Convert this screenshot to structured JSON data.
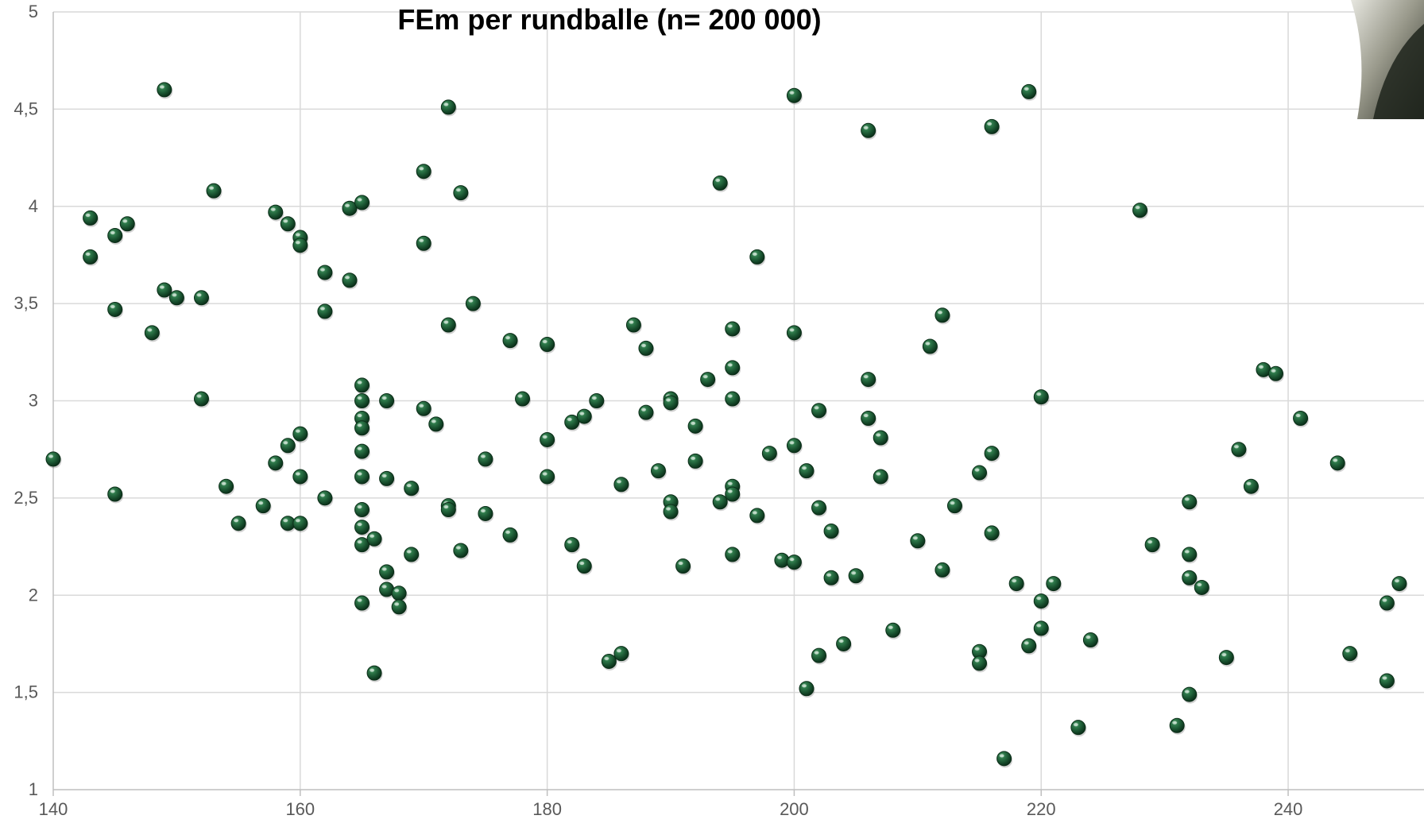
{
  "chart_data": {
    "type": "scatter",
    "title": "FEm per rundballe (n= 200 000)",
    "xlabel": "",
    "ylabel": "",
    "xlim": [
      140,
      251
    ],
    "ylim": [
      1,
      5
    ],
    "x_ticks": [
      140,
      160,
      180,
      200,
      220,
      240
    ],
    "x_tick_labels": [
      "140",
      "160",
      "180",
      "200",
      "220",
      "240"
    ],
    "y_ticks": [
      1,
      1.5,
      2,
      2.5,
      3,
      3.5,
      4,
      4.5,
      5
    ],
    "y_tick_labels": [
      "1",
      "1,5",
      "2",
      "2,5",
      "3",
      "3,5",
      "4",
      "4,5",
      "5"
    ],
    "grid": true,
    "legend": "none",
    "marker_color": "#1d5a34",
    "series": [
      {
        "points": [
          [
            140,
            2.7
          ],
          [
            143,
            3.94
          ],
          [
            143,
            3.74
          ],
          [
            145,
            3.85
          ],
          [
            145,
            3.47
          ],
          [
            145,
            2.52
          ],
          [
            146,
            3.91
          ],
          [
            148,
            3.35
          ],
          [
            149,
            4.6
          ],
          [
            149,
            3.57
          ],
          [
            150,
            3.53
          ],
          [
            152,
            3.53
          ],
          [
            152,
            3.01
          ],
          [
            153,
            4.08
          ],
          [
            154,
            2.56
          ],
          [
            155,
            2.37
          ],
          [
            157,
            2.46
          ],
          [
            158,
            3.97
          ],
          [
            158,
            2.68
          ],
          [
            159,
            3.91
          ],
          [
            159,
            2.77
          ],
          [
            159,
            2.37
          ],
          [
            160,
            3.84
          ],
          [
            160,
            3.8
          ],
          [
            160,
            2.83
          ],
          [
            160,
            2.61
          ],
          [
            160,
            2.37
          ],
          [
            162,
            3.66
          ],
          [
            162,
            3.46
          ],
          [
            162,
            2.5
          ],
          [
            164,
            3.99
          ],
          [
            164,
            3.62
          ],
          [
            165,
            4.02
          ],
          [
            165,
            3.08
          ],
          [
            165,
            3.0
          ],
          [
            165,
            2.91
          ],
          [
            165,
            2.86
          ],
          [
            165,
            2.74
          ],
          [
            165,
            2.61
          ],
          [
            165,
            2.44
          ],
          [
            165,
            2.35
          ],
          [
            165,
            2.26
          ],
          [
            165,
            1.96
          ],
          [
            166,
            2.29
          ],
          [
            166,
            1.6
          ],
          [
            167,
            3.0
          ],
          [
            167,
            2.6
          ],
          [
            167,
            2.12
          ],
          [
            167,
            2.03
          ],
          [
            168,
            2.01
          ],
          [
            168,
            1.94
          ],
          [
            169,
            2.55
          ],
          [
            169,
            2.21
          ],
          [
            170,
            4.18
          ],
          [
            170,
            3.81
          ],
          [
            170,
            2.96
          ],
          [
            171,
            2.88
          ],
          [
            172,
            4.51
          ],
          [
            172,
            3.39
          ],
          [
            172,
            2.46
          ],
          [
            172,
            2.44
          ],
          [
            173,
            4.07
          ],
          [
            173,
            2.23
          ],
          [
            174,
            3.5
          ],
          [
            175,
            2.7
          ],
          [
            175,
            2.42
          ],
          [
            177,
            3.31
          ],
          [
            177,
            2.31
          ],
          [
            178,
            3.01
          ],
          [
            180,
            3.29
          ],
          [
            180,
            2.8
          ],
          [
            180,
            2.61
          ],
          [
            182,
            2.89
          ],
          [
            182,
            2.26
          ],
          [
            183,
            2.92
          ],
          [
            183,
            2.15
          ],
          [
            184,
            3.0
          ],
          [
            185,
            1.66
          ],
          [
            186,
            2.57
          ],
          [
            186,
            1.7
          ],
          [
            187,
            3.39
          ],
          [
            188,
            3.27
          ],
          [
            188,
            2.94
          ],
          [
            189,
            2.64
          ],
          [
            190,
            3.01
          ],
          [
            190,
            2.99
          ],
          [
            190,
            2.48
          ],
          [
            190,
            2.43
          ],
          [
            191,
            2.15
          ],
          [
            192,
            2.87
          ],
          [
            192,
            2.69
          ],
          [
            193,
            3.11
          ],
          [
            194,
            4.12
          ],
          [
            194,
            2.48
          ],
          [
            195,
            3.37
          ],
          [
            195,
            3.17
          ],
          [
            195,
            3.01
          ],
          [
            195,
            2.56
          ],
          [
            195,
            2.52
          ],
          [
            195,
            2.21
          ],
          [
            197,
            3.74
          ],
          [
            197,
            2.41
          ],
          [
            198,
            2.73
          ],
          [
            199,
            2.18
          ],
          [
            200,
            4.57
          ],
          [
            200,
            3.35
          ],
          [
            200,
            2.77
          ],
          [
            200,
            2.17
          ],
          [
            201,
            2.64
          ],
          [
            201,
            1.52
          ],
          [
            202,
            2.95
          ],
          [
            202,
            2.45
          ],
          [
            202,
            1.69
          ],
          [
            203,
            2.33
          ],
          [
            203,
            2.09
          ],
          [
            204,
            1.75
          ],
          [
            205,
            2.1
          ],
          [
            206,
            4.39
          ],
          [
            206,
            3.11
          ],
          [
            206,
            2.91
          ],
          [
            207,
            2.81
          ],
          [
            207,
            2.61
          ],
          [
            208,
            1.82
          ],
          [
            210,
            2.28
          ],
          [
            211,
            3.28
          ],
          [
            212,
            3.44
          ],
          [
            212,
            2.13
          ],
          [
            213,
            2.46
          ],
          [
            215,
            2.63
          ],
          [
            215,
            1.71
          ],
          [
            215,
            1.65
          ],
          [
            216,
            4.41
          ],
          [
            216,
            2.73
          ],
          [
            216,
            2.32
          ],
          [
            217,
            1.16
          ],
          [
            218,
            2.06
          ],
          [
            219,
            4.59
          ],
          [
            219,
            1.74
          ],
          [
            220,
            3.02
          ],
          [
            220,
            1.97
          ],
          [
            220,
            1.83
          ],
          [
            221,
            2.06
          ],
          [
            223,
            1.32
          ],
          [
            224,
            1.77
          ],
          [
            228,
            3.98
          ],
          [
            229,
            2.26
          ],
          [
            231,
            1.33
          ],
          [
            232,
            2.48
          ],
          [
            232,
            2.21
          ],
          [
            232,
            2.09
          ],
          [
            232,
            1.49
          ],
          [
            233,
            2.04
          ],
          [
            235,
            1.68
          ],
          [
            236,
            2.75
          ],
          [
            237,
            2.56
          ],
          [
            238,
            3.16
          ],
          [
            239,
            3.14
          ],
          [
            241,
            2.91
          ],
          [
            244,
            2.68
          ],
          [
            245,
            1.7
          ],
          [
            248,
            1.96
          ],
          [
            248,
            1.56
          ],
          [
            249,
            2.06
          ]
        ]
      }
    ]
  }
}
